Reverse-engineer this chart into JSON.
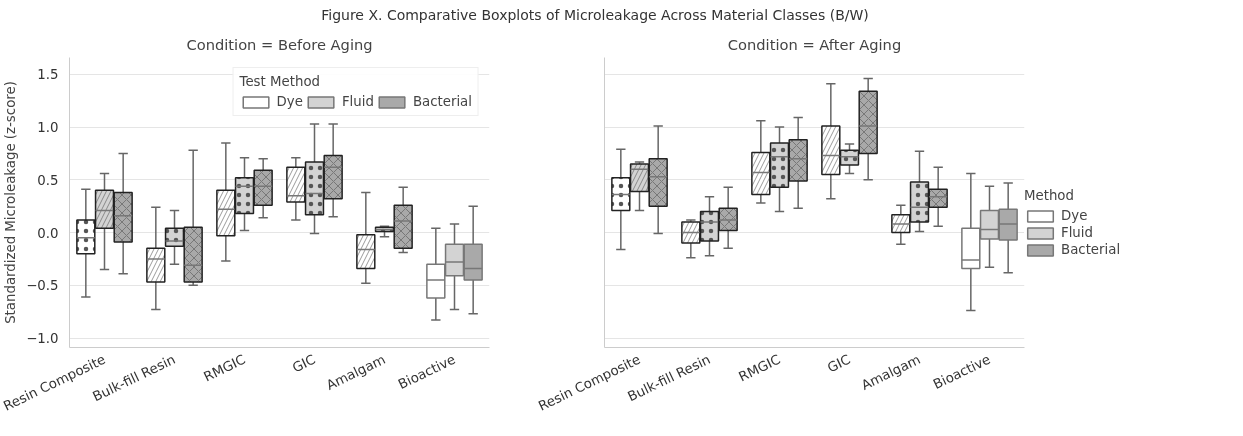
{
  "chart_data": [
    {
      "type": "box",
      "title": "Condition = Before Aging",
      "ylabel": "Standardized Microleakage (z-score)",
      "annotations": [
        "Figure X. Comparative Boxplots of Microleakage Across Material Classes (B/W)"
      ],
      "legend": "top right",
      "legend_title": "Test Method",
      "grid": "y",
      "categories": [
        "Resin Composite",
        "Bulk-fill Resin",
        "RMGIC",
        "GIC",
        "Amalgam",
        "Bioactive"
      ],
      "ylim": [
        -1.09,
        1.66
      ],
      "yticks": [
        {
          "value": -1,
          "label": "−1.0"
        },
        {
          "value": -0.5,
          "label": "−0.5"
        },
        {
          "value": 0,
          "label": "0.0"
        },
        0.5,
        {
          "value": 1,
          "label": "1.0"
        },
        1.5
      ],
      "series": [
        {
          "name": "Dye",
          "color": "#ffffff",
          "boxes": [
            {
              "low": -0.61,
              "q1": -0.2,
              "median": -0.05,
              "q3": 0.12,
              "high": 0.41
            },
            {
              "low": -0.73,
              "q1": -0.47,
              "median": -0.25,
              "q3": -0.15,
              "high": 0.24
            },
            {
              "low": -0.27,
              "q1": -0.03,
              "median": 0.22,
              "q3": 0.4,
              "high": 0.85
            },
            {
              "low": 0.12,
              "q1": 0.29,
              "median": 0.35,
              "q3": 0.62,
              "high": 0.71
            },
            {
              "low": -0.48,
              "q1": -0.34,
              "median": -0.16,
              "q3": -0.02,
              "high": 0.38
            },
            {
              "low": -0.83,
              "q1": -0.62,
              "median": -0.45,
              "q3": -0.3,
              "high": 0.04
            }
          ]
        },
        {
          "name": "Fluid",
          "color": "#d3d3d3",
          "boxes": [
            {
              "low": -0.35,
              "q1": 0.04,
              "median": 0.21,
              "q3": 0.4,
              "high": 0.56
            },
            {
              "low": -0.3,
              "q1": -0.13,
              "median": -0.08,
              "q3": 0.04,
              "high": 0.21
            },
            {
              "low": 0.02,
              "q1": 0.18,
              "median": 0.44,
              "q3": 0.52,
              "high": 0.71
            },
            {
              "low": -0.01,
              "q1": 0.17,
              "median": 0.37,
              "q3": 0.67,
              "high": 1.03
            },
            {
              "low": -0.04,
              "q1": 0.01,
              "median": 0.03,
              "q3": 0.05,
              "high": 0.06
            },
            {
              "low": -0.73,
              "q1": -0.41,
              "median": -0.28,
              "q3": -0.11,
              "high": 0.08
            }
          ]
        },
        {
          "name": "Bacterial",
          "color": "#a9a9a9",
          "boxes": [
            {
              "low": -0.39,
              "q1": -0.09,
              "median": 0.16,
              "q3": 0.38,
              "high": 0.75
            },
            {
              "low": -0.5,
              "q1": -0.47,
              "median": -0.31,
              "q3": 0.05,
              "high": 0.78
            },
            {
              "low": 0.14,
              "q1": 0.26,
              "median": 0.44,
              "q3": 0.59,
              "high": 0.7
            },
            {
              "low": 0.15,
              "q1": 0.32,
              "median": 0.62,
              "q3": 0.73,
              "high": 1.03
            },
            {
              "low": -0.19,
              "q1": -0.15,
              "median": 0.11,
              "q3": 0.26,
              "high": 0.43
            },
            {
              "low": -0.77,
              "q1": -0.45,
              "median": -0.34,
              "q3": -0.11,
              "high": 0.25
            }
          ]
        }
      ]
    },
    {
      "type": "box",
      "title": "Condition = After Aging",
      "legend": "right",
      "legend_title": "Method",
      "grid": "y",
      "tick_labels": "x",
      "categories": [
        "Resin Composite",
        "Bulk-fill Resin",
        "RMGIC",
        "GIC",
        "Amalgam",
        "Bioactive"
      ],
      "ylim": [
        -1.09,
        1.66
      ],
      "yticks": [
        -1,
        -0.5,
        0,
        0.5,
        1,
        1.5
      ],
      "series": [
        {
          "name": "Dye",
          "color": "#ffffff",
          "boxes": [
            {
              "low": -0.16,
              "q1": 0.21,
              "median": 0.36,
              "q3": 0.52,
              "high": 0.79
            },
            {
              "low": -0.24,
              "q1": -0.1,
              "median": 0.0,
              "q3": 0.1,
              "high": 0.12
            },
            {
              "low": 0.28,
              "q1": 0.36,
              "median": 0.57,
              "q3": 0.76,
              "high": 1.06
            },
            {
              "low": 0.32,
              "q1": 0.55,
              "median": 0.73,
              "q3": 1.01,
              "high": 1.41
            },
            {
              "low": -0.11,
              "q1": 0.0,
              "median": 0.08,
              "q3": 0.17,
              "high": 0.26
            },
            {
              "low": -0.74,
              "q1": -0.34,
              "median": -0.26,
              "q3": 0.04,
              "high": 0.56
            }
          ]
        },
        {
          "name": "Fluid",
          "color": "#d3d3d3",
          "boxes": [
            {
              "low": 0.21,
              "q1": 0.39,
              "median": 0.6,
              "q3": 0.65,
              "high": 0.67
            },
            {
              "low": -0.22,
              "q1": -0.08,
              "median": 0.1,
              "q3": 0.2,
              "high": 0.34
            },
            {
              "low": 0.2,
              "q1": 0.43,
              "median": 0.72,
              "q3": 0.85,
              "high": 1.0
            },
            {
              "low": 0.56,
              "q1": 0.64,
              "median": 0.72,
              "q3": 0.78,
              "high": 0.84
            },
            {
              "low": 0.01,
              "q1": 0.1,
              "median": 0.24,
              "q3": 0.48,
              "high": 0.77
            },
            {
              "low": -0.33,
              "q1": -0.06,
              "median": 0.03,
              "q3": 0.21,
              "high": 0.44
            }
          ]
        },
        {
          "name": "Bacterial",
          "color": "#a9a9a9",
          "boxes": [
            {
              "low": -0.01,
              "q1": 0.25,
              "median": 0.53,
              "q3": 0.7,
              "high": 1.01
            },
            {
              "low": -0.15,
              "q1": 0.02,
              "median": 0.12,
              "q3": 0.23,
              "high": 0.43
            },
            {
              "low": 0.23,
              "q1": 0.49,
              "median": 0.7,
              "q3": 0.88,
              "high": 1.09
            },
            {
              "low": 0.5,
              "q1": 0.75,
              "median": 1.01,
              "q3": 1.34,
              "high": 1.46
            },
            {
              "low": 0.06,
              "q1": 0.24,
              "median": 0.34,
              "q3": 0.41,
              "high": 0.62
            },
            {
              "low": -0.38,
              "q1": -0.07,
              "median": 0.08,
              "q3": 0.22,
              "high": 0.47
            }
          ]
        }
      ]
    }
  ]
}
